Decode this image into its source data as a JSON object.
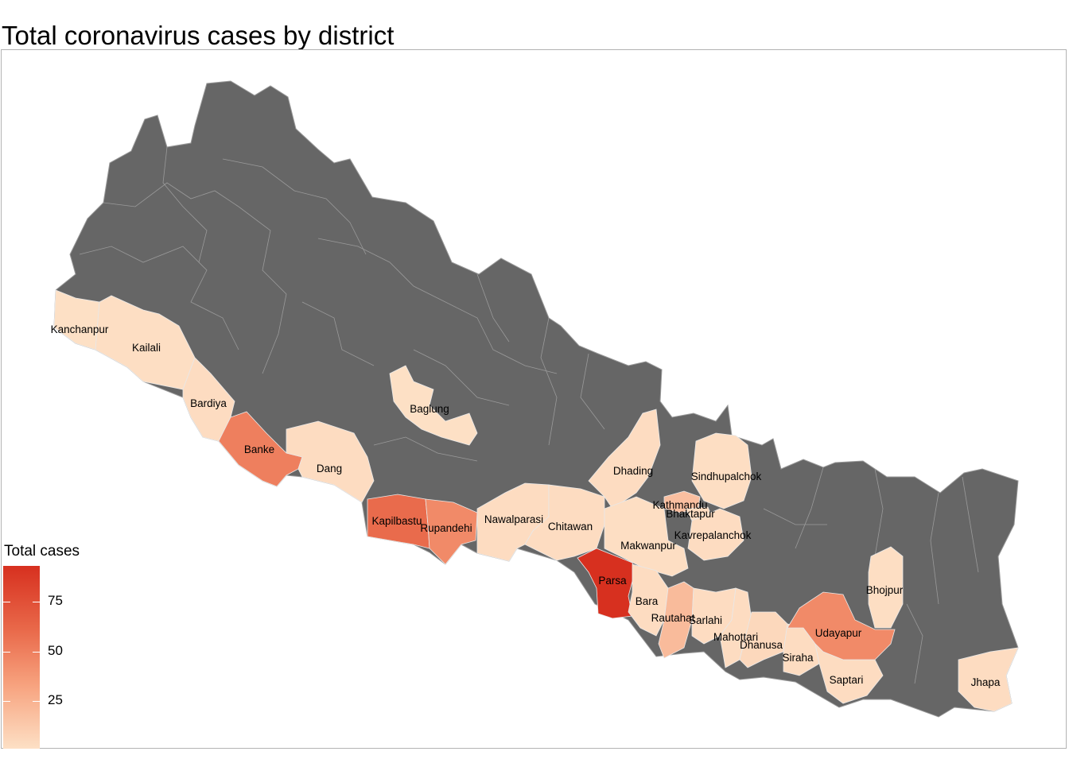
{
  "title": "Total coronavirus cases by district",
  "colors": {
    "no_data": "#666666",
    "low": "#fde0c5",
    "high": "#d7301f",
    "boundary": "#9a9a9a"
  },
  "legend": {
    "title": "Total cases",
    "ticks": [
      {
        "value": 75,
        "label": "75"
      },
      {
        "value": 50,
        "label": "50"
      },
      {
        "value": 25,
        "label": "25"
      }
    ],
    "min": 1,
    "max": 93
  },
  "districts": [
    {
      "name": "Kanchanpur",
      "cases": 1
    },
    {
      "name": "Kailali",
      "cases": 2
    },
    {
      "name": "Bardiya",
      "cases": 3
    },
    {
      "name": "Banke",
      "cases": 50
    },
    {
      "name": "Dang",
      "cases": 3
    },
    {
      "name": "Baglung",
      "cases": 1
    },
    {
      "name": "Kapilbastu",
      "cases": 60
    },
    {
      "name": "Rupandehi",
      "cases": 45
    },
    {
      "name": "Nawalparasi",
      "cases": 3
    },
    {
      "name": "Chitawan",
      "cases": 3
    },
    {
      "name": "Dhading",
      "cases": 3
    },
    {
      "name": "Sindhupalchok",
      "cases": 2
    },
    {
      "name": "Kathmandu",
      "cases": 18
    },
    {
      "name": "Bhaktapur",
      "cases": 3
    },
    {
      "name": "Kavrepalanchok",
      "cases": 3
    },
    {
      "name": "Makwanpur",
      "cases": 2
    },
    {
      "name": "Parsa",
      "cases": 93
    },
    {
      "name": "Bara",
      "cases": 3
    },
    {
      "name": "Rautahat",
      "cases": 20
    },
    {
      "name": "Sarlahi",
      "cases": 3
    },
    {
      "name": "Mahottari",
      "cases": 3
    },
    {
      "name": "Dhanusa",
      "cases": 5
    },
    {
      "name": "Siraha",
      "cases": 3
    },
    {
      "name": "Saptari",
      "cases": 3
    },
    {
      "name": "Udayapur",
      "cases": 45
    },
    {
      "name": "Bhojpur",
      "cases": 2
    },
    {
      "name": "Jhapa",
      "cases": 3
    }
  ]
}
